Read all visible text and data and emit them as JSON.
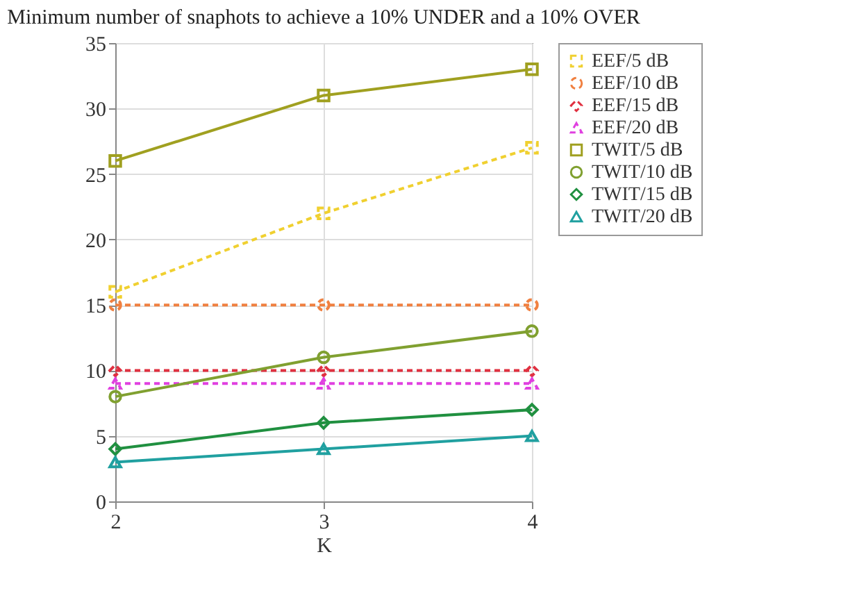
{
  "chart_data": {
    "type": "line",
    "title": "Minimum number of snaphots to achieve a 10% UNDER and a 10% OVER",
    "xlabel": "K",
    "x": [
      2,
      3,
      4
    ],
    "xlim": [
      2,
      4
    ],
    "xticks": [
      2,
      3,
      4
    ],
    "ylim": [
      0,
      35
    ],
    "yticks": [
      0,
      5,
      10,
      15,
      20,
      25,
      30,
      35
    ],
    "grid": true,
    "legend": "right",
    "series": [
      {
        "name": "EEF/5 dB",
        "color": "#f0d030",
        "marker": "square",
        "line_style": "dashed",
        "values": [
          16,
          22,
          27
        ]
      },
      {
        "name": "EEF/10 dB",
        "color": "#f08040",
        "marker": "circle",
        "line_style": "dashed",
        "values": [
          15,
          15,
          15
        ]
      },
      {
        "name": "EEF/15 dB",
        "color": "#e03040",
        "marker": "diamond",
        "line_style": "dashed",
        "values": [
          10,
          10,
          10
        ]
      },
      {
        "name": "EEF/20 dB",
        "color": "#e040e0",
        "marker": "triangle",
        "line_style": "dashed",
        "values": [
          9,
          9,
          9
        ]
      },
      {
        "name": "TWIT/5 dB",
        "color": "#a0a020",
        "marker": "square",
        "line_style": "solid",
        "values": [
          26,
          31,
          33
        ]
      },
      {
        "name": "TWIT/10 dB",
        "color": "#80a030",
        "marker": "circle",
        "line_style": "solid",
        "values": [
          8,
          11,
          13
        ]
      },
      {
        "name": "TWIT/15 dB",
        "color": "#209040",
        "marker": "diamond",
        "line_style": "solid",
        "values": [
          4,
          6,
          7
        ]
      },
      {
        "name": "TWIT/20 dB",
        "color": "#20a0a0",
        "marker": "triangle",
        "line_style": "solid",
        "values": [
          3,
          4,
          5
        ]
      }
    ]
  }
}
